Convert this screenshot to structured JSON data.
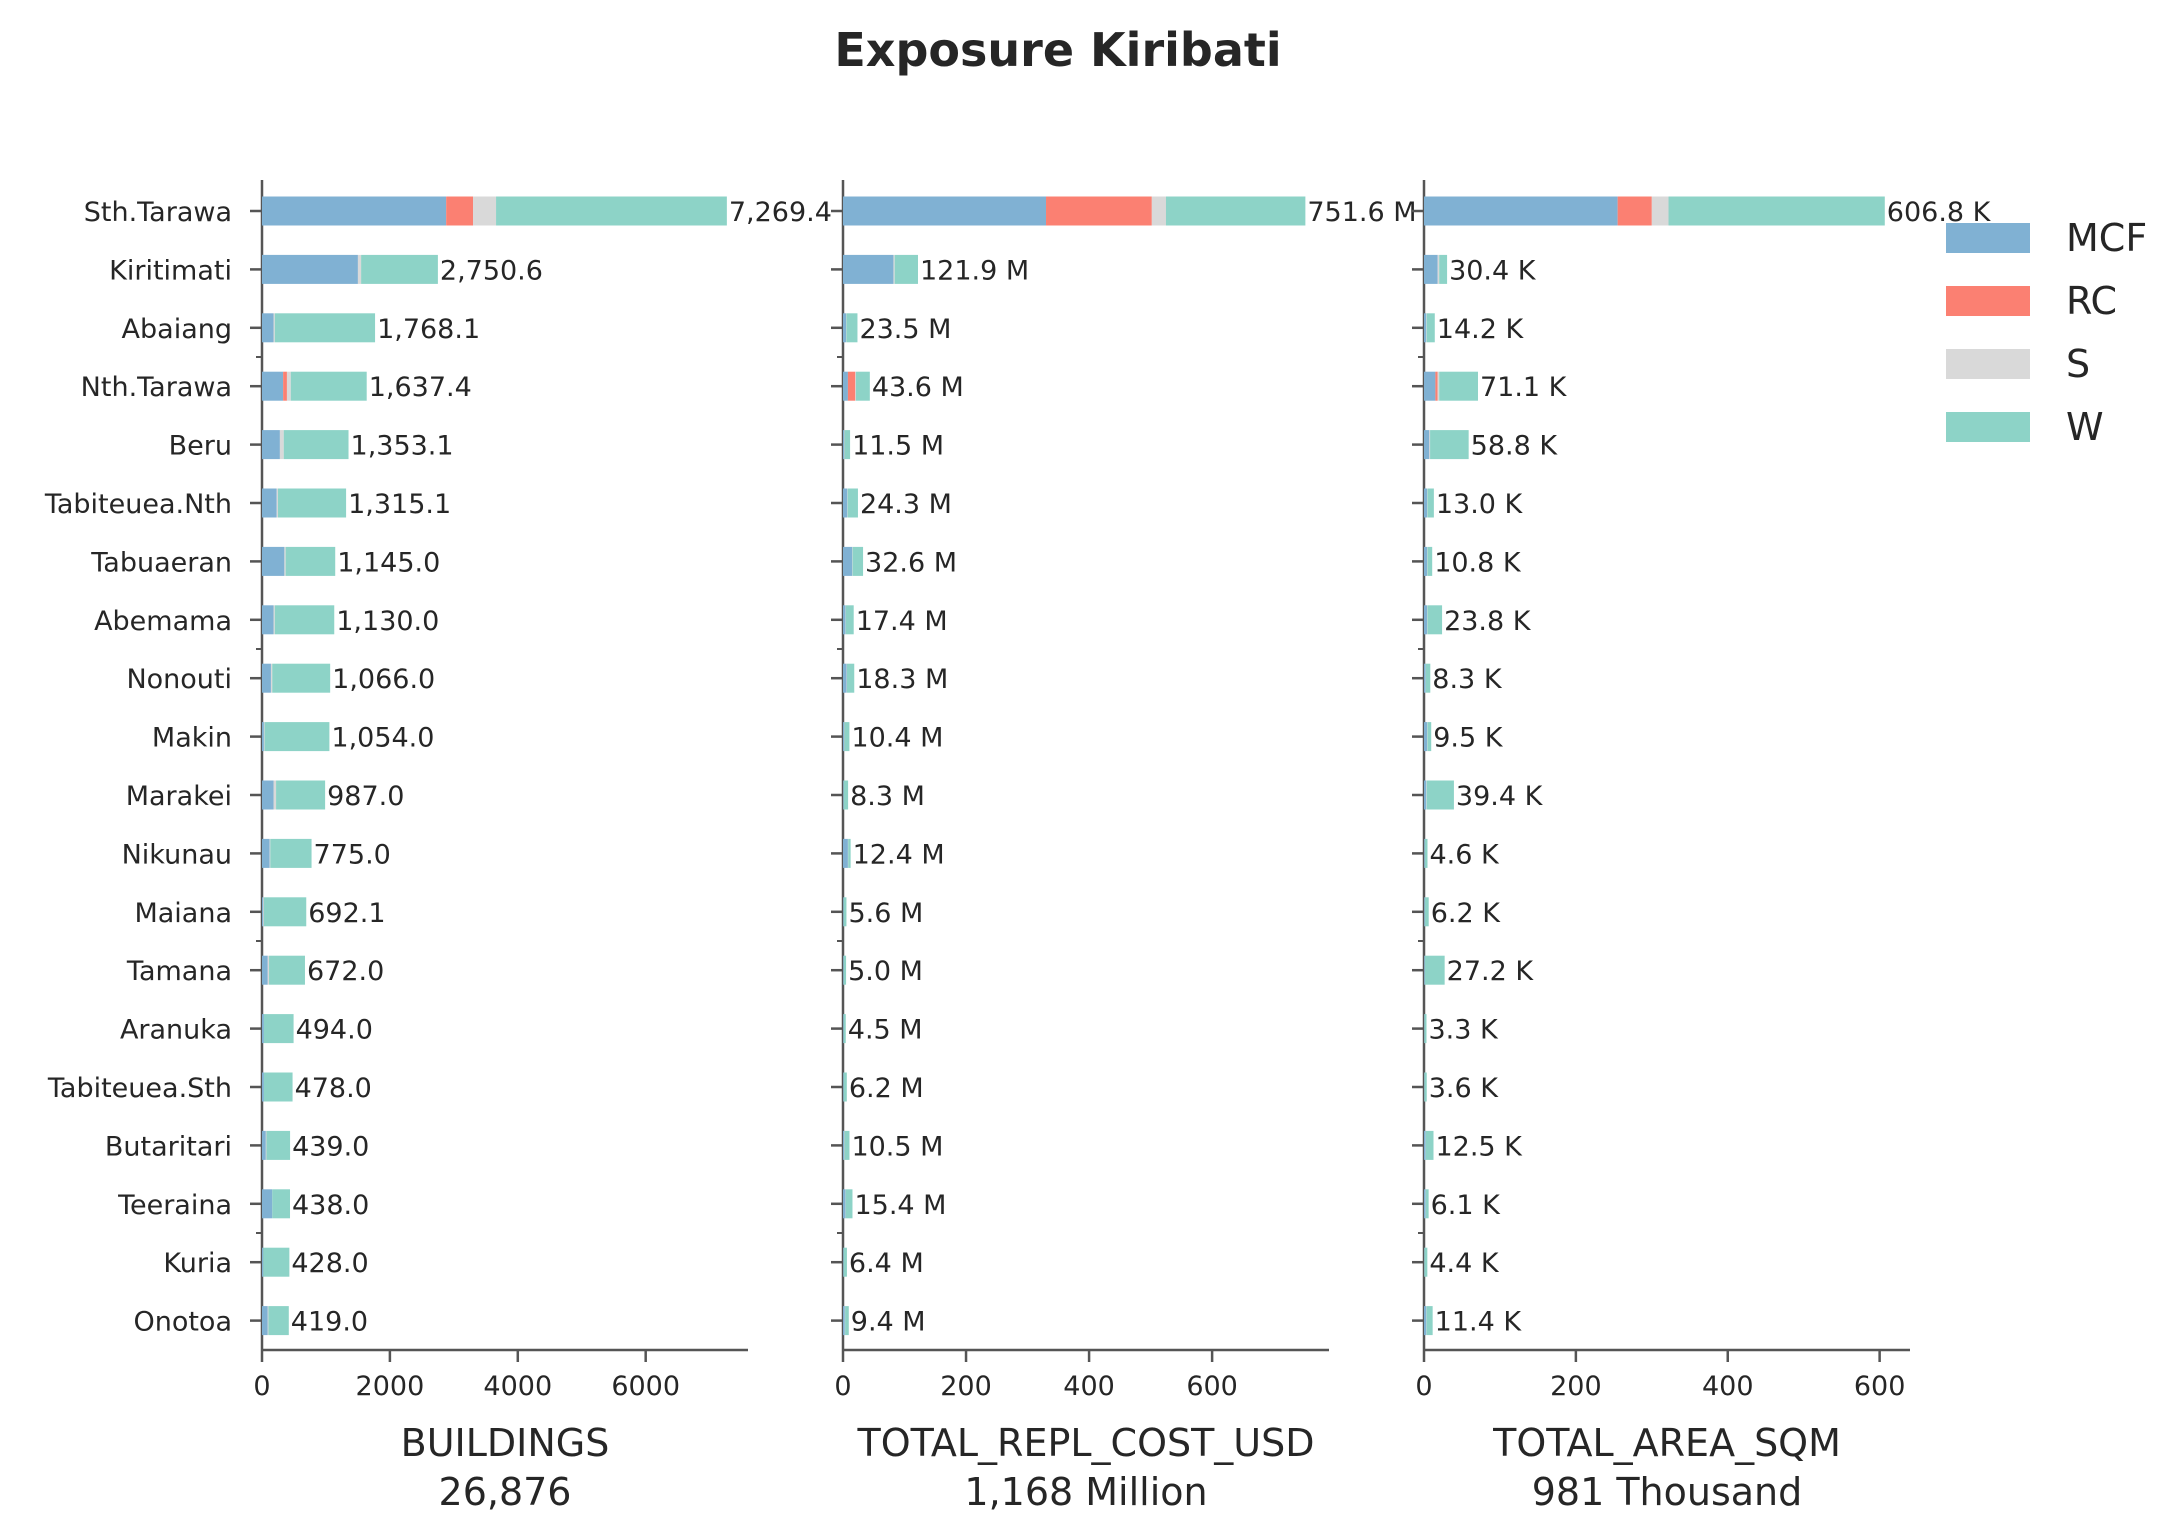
{
  "chart_data": {
    "type": "bar",
    "orientation": "horizontal",
    "stacked": true,
    "title": "Exposure Kiribati",
    "legend_position": "top-right",
    "grid": false,
    "colors": {
      "MCF": "#80b1d3",
      "RC": "#fb8072",
      "S": "#d9d9d9",
      "W": "#8dd3c7"
    },
    "legend": [
      "MCF",
      "RC",
      "S",
      "W"
    ],
    "categories": [
      "Sth.Tarawa",
      "Kiritimati",
      "Abaiang",
      "Nth.Tarawa",
      "Beru",
      "Tabiteuea.Nth",
      "Tabuaeran",
      "Abemama",
      "Nonouti",
      "Makin",
      "Marakei",
      "Nikunau",
      "Maiana",
      "Tamana",
      "Aranuka",
      "Tabiteuea.Sth",
      "Butaritari",
      "Teeraina",
      "Kuria",
      "Onotoa"
    ],
    "panels": [
      {
        "xlabel": "BUILDINGS",
        "total": "26,876",
        "xlim": [
          0,
          7600
        ],
        "xticks": [
          0,
          2000,
          4000,
          6000
        ],
        "xtick_labels": [
          "0",
          "2000",
          "4000",
          "6000"
        ],
        "series": [
          {
            "name": "MCF",
            "values": [
              2880,
              1500,
              180,
              330,
              280,
              230,
              350,
              180,
              140,
              30,
              180,
              120,
              20,
              90,
              30,
              30,
              60,
              160,
              20,
              90
            ]
          },
          {
            "name": "RC",
            "values": [
              420,
              0,
              0,
              60,
              0,
              0,
              0,
              0,
              0,
              0,
              0,
              0,
              0,
              0,
              0,
              0,
              0,
              0,
              0,
              0
            ]
          },
          {
            "name": "S",
            "values": [
              360,
              50,
              20,
              60,
              60,
              20,
              20,
              20,
              20,
              10,
              40,
              10,
              10,
              20,
              0,
              0,
              10,
              0,
              0,
              10
            ]
          },
          {
            "name": "W",
            "values": [
              3609.4,
              1200.6,
              1568.1,
              1187.4,
              1013.1,
              1065.1,
              775,
              930,
              906,
              1014,
              767,
              645,
              662.1,
              562,
              464,
              448,
              369,
              278,
              408,
              319
            ]
          }
        ],
        "labels": [
          "7,269.4",
          "2,750.6",
          "1,768.1",
          "1,637.4",
          "1,353.1",
          "1,315.1",
          "1,145.0",
          "1,130.0",
          "1,066.0",
          "1,054.0",
          "987.0",
          "775.0",
          "692.1",
          "672.0",
          "494.0",
          "478.0",
          "439.0",
          "438.0",
          "428.0",
          "419.0"
        ]
      },
      {
        "xlabel": "TOTAL_REPL_COST_USD",
        "total": "1,168 Million",
        "xlim": [
          0,
          790
        ],
        "xticks": [
          0,
          200,
          400,
          600
        ],
        "xtick_labels": [
          "0",
          "200",
          "400",
          "600"
        ],
        "series": [
          {
            "name": "MCF",
            "values": [
              330,
              82,
              5,
              8,
              2,
              7,
              15,
              4,
              6,
              2,
              1,
              8,
              1,
              1,
              1,
              1,
              2,
              4,
              1,
              3
            ]
          },
          {
            "name": "RC",
            "values": [
              172,
              0,
              0,
              12,
              0,
              0,
              0,
              0,
              0,
              0,
              0,
              0,
              0,
              0,
              0,
              0,
              0,
              0,
              0,
              0
            ]
          },
          {
            "name": "S",
            "values": [
              23,
              2,
              0.5,
              1,
              0.5,
              0.5,
              0.5,
              0.5,
              0.5,
              0.4,
              0.3,
              0.4,
              0.2,
              0.2,
              0.2,
              0.2,
              0.5,
              0.4,
              0.2,
              0.4
            ]
          },
          {
            "name": "W",
            "values": [
              226.6,
              37.9,
              18,
              22.6,
              9,
              16.8,
              17.1,
              12.9,
              11.8,
              8,
              7,
              4,
              4.4,
              3.8,
              3.3,
              5,
              8,
              11,
              5.2,
              6
            ]
          }
        ],
        "labels": [
          "751.6 M",
          "121.9 M",
          "23.5 M",
          "43.6 M",
          "11.5 M",
          "24.3 M",
          "32.6 M",
          "17.4 M",
          "18.3 M",
          "10.4 M",
          "8.3 M",
          "12.4 M",
          "5.6 M",
          "5.0 M",
          "4.5 M",
          "6.2 M",
          "10.5 M",
          "15.4 M",
          "6.4 M",
          "9.4 M"
        ]
      },
      {
        "xlabel": "TOTAL_AREA_SQM",
        "total": "981 Thousand",
        "xlim": [
          0,
          640
        ],
        "xticks": [
          0,
          200,
          400,
          600
        ],
        "xtick_labels": [
          "0",
          "200",
          "400",
          "600"
        ],
        "series": [
          {
            "name": "MCF",
            "values": [
              255,
              18,
              3,
              15,
              7,
              4,
              4,
              4,
              2,
              4,
              3,
              1,
              1,
              1,
              0.5,
              0.5,
              2,
              2,
              0.5,
              3
            ]
          },
          {
            "name": "RC",
            "values": [
              45,
              0,
              0,
              3,
              0,
              0,
              0,
              0,
              0,
              0,
              0,
              0,
              0,
              0,
              0,
              0,
              0,
              0,
              0,
              0
            ]
          },
          {
            "name": "S",
            "values": [
              22,
              2,
              0.5,
              2,
              1,
              0.5,
              0.5,
              0.5,
              0.3,
              0.5,
              0.5,
              0.2,
              0.2,
              0.2,
              0.2,
              0.2,
              0.3,
              0.3,
              0.2,
              0.3
            ]
          },
          {
            "name": "W",
            "values": [
              284.8,
              10.4,
              10.7,
              51.1,
              50.8,
              8.5,
              6.3,
              19.3,
              6,
              5,
              35.9,
              3.4,
              5,
              26,
              2.6,
              2.9,
              10.2,
              3.8,
              3.7,
              8.1
            ]
          }
        ],
        "labels": [
          "606.8 K",
          "30.4 K",
          "14.2 K",
          "71.1 K",
          "58.8 K",
          "13.0 K",
          "10.8 K",
          "23.8 K",
          "8.3 K",
          "9.5 K",
          "39.4 K",
          "4.6 K",
          "6.2 K",
          "27.2 K",
          "3.3 K",
          "3.6 K",
          "12.5 K",
          "6.1 K",
          "4.4 K",
          "11.4 K"
        ]
      }
    ]
  }
}
